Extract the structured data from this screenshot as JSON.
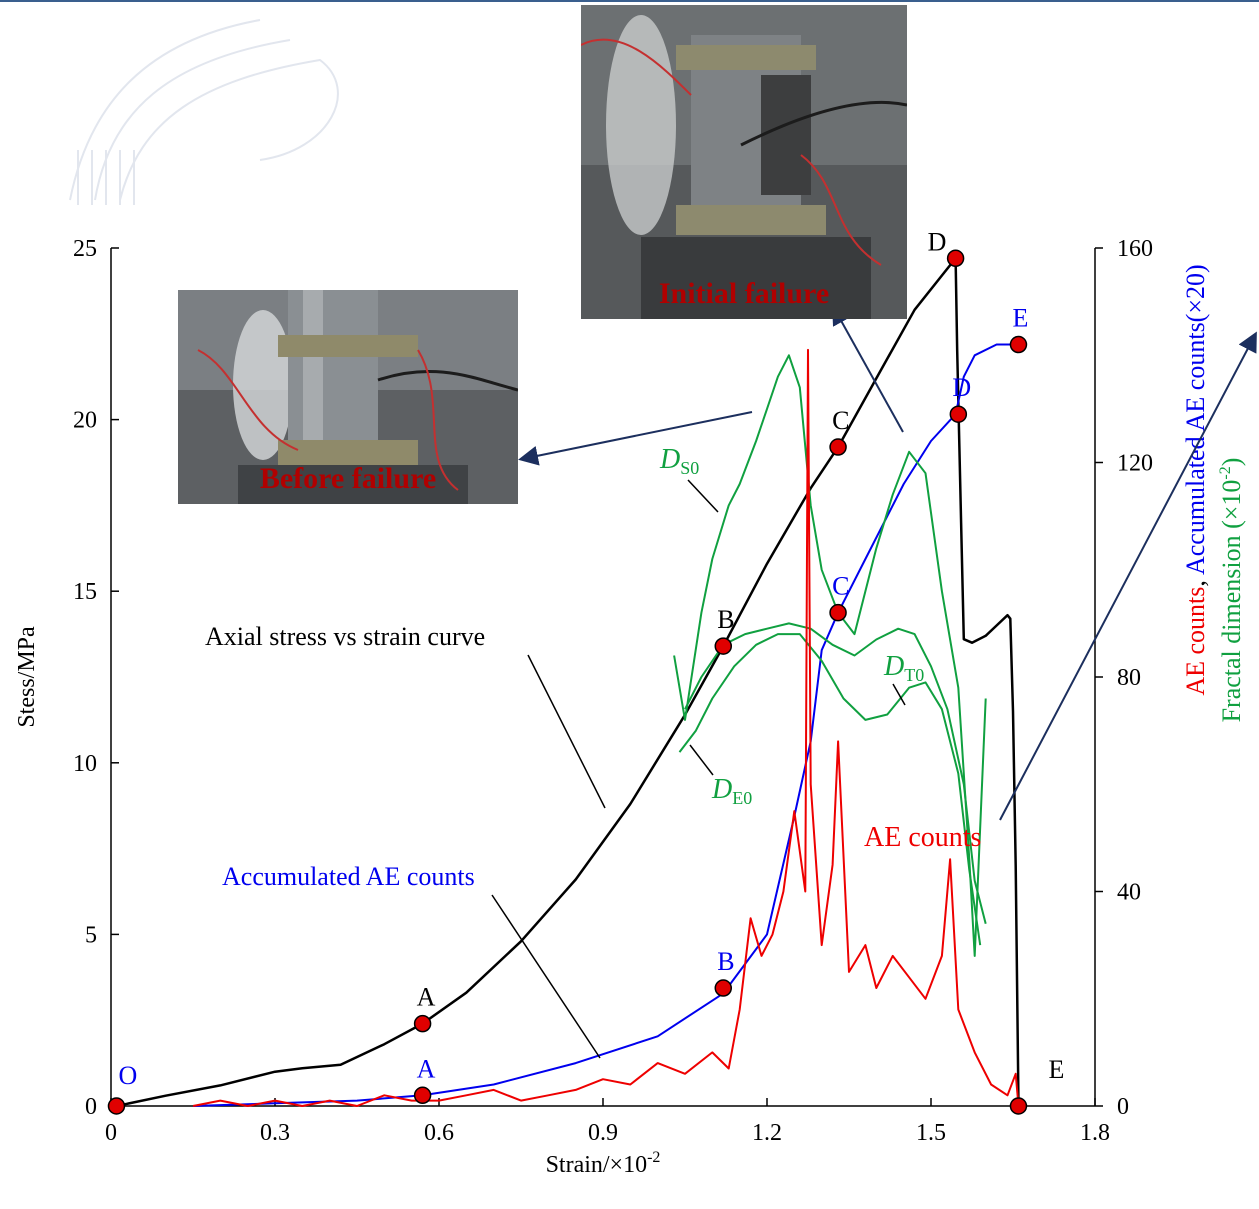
{
  "chart_data": {
    "type": "line",
    "xlabel": "Strain/×10",
    "xlabel_sup": "-2",
    "ylabel": "Stess/MPa",
    "ylabel_right_parts": [
      "AE counts",
      ", ",
      "Accumulated AE counts",
      "(×20)"
    ],
    "ylabel_right2_main": "Fractal dimension (×10",
    "ylabel_right2_sup": "-2",
    "ylabel_right2_close": ")",
    "xlim": [
      0,
      1.8
    ],
    "ylim": [
      0,
      25
    ],
    "y2lim": [
      0,
      160
    ],
    "x_ticks": [
      "0",
      "0.3",
      "0.6",
      "0.9",
      "1.2",
      "1.5",
      "1.8"
    ],
    "y_ticks": [
      "0",
      "5",
      "10",
      "15",
      "20",
      "25"
    ],
    "y2_ticks": [
      "0",
      "40",
      "80",
      "120",
      "160"
    ],
    "colors": {
      "stress": "#000000",
      "accumulated": "#0000ee",
      "ae": "#ee0000",
      "fractal": "#10a040",
      "marker": "#e00000",
      "arrow": "#1c2f5e"
    },
    "series": [
      {
        "name": "Axial  stress vs strain curve",
        "axis": "left",
        "x": [
          0.01,
          0.1,
          0.2,
          0.3,
          0.35,
          0.42,
          0.5,
          0.57,
          0.65,
          0.75,
          0.85,
          0.95,
          1.05,
          1.12,
          1.2,
          1.28,
          1.33,
          1.4,
          1.47,
          1.52,
          1.545,
          1.548,
          1.555,
          1.56,
          1.575,
          1.6,
          1.62,
          1.64,
          1.645,
          1.65,
          1.655,
          1.66
        ],
        "y": [
          0.0,
          0.3,
          0.6,
          1.0,
          1.1,
          1.2,
          1.8,
          2.4,
          3.3,
          4.8,
          6.6,
          8.8,
          11.4,
          13.4,
          15.8,
          18.0,
          19.2,
          21.2,
          23.2,
          24.2,
          24.7,
          22.0,
          17.0,
          13.6,
          13.5,
          13.7,
          14.0,
          14.3,
          14.2,
          11.5,
          7.0,
          0.0
        ]
      },
      {
        "name": "Accumulated AE counts",
        "axis": "right",
        "x": [
          0.15,
          0.3,
          0.45,
          0.57,
          0.7,
          0.85,
          1.0,
          1.12,
          1.2,
          1.25,
          1.28,
          1.3,
          1.33,
          1.38,
          1.45,
          1.5,
          1.545,
          1.56,
          1.58,
          1.62,
          1.66
        ],
        "y": [
          0,
          0.5,
          1,
          2,
          4,
          8,
          13,
          21,
          32,
          54,
          68,
          85,
          92,
          102,
          116,
          124,
          129,
          136,
          140,
          142,
          142
        ]
      },
      {
        "name": "D_S0",
        "axis": "right",
        "x": [
          1.03,
          1.05,
          1.08,
          1.1,
          1.13,
          1.15,
          1.18,
          1.2,
          1.22,
          1.24,
          1.26,
          1.28,
          1.3,
          1.33,
          1.36,
          1.4,
          1.43,
          1.46,
          1.49,
          1.52,
          1.55,
          1.57,
          1.58,
          1.6
        ],
        "y": [
          84,
          72,
          92,
          102,
          112,
          116,
          124,
          130,
          136,
          140,
          134,
          112,
          100,
          92,
          88,
          104,
          114,
          122,
          118,
          96,
          78,
          46,
          28,
          76
        ]
      },
      {
        "name": "D_T0",
        "axis": "right",
        "x": [
          1.05,
          1.08,
          1.12,
          1.16,
          1.2,
          1.24,
          1.28,
          1.32,
          1.36,
          1.4,
          1.44,
          1.47,
          1.5,
          1.53,
          1.56,
          1.58,
          1.6
        ],
        "y": [
          74,
          80,
          86,
          88,
          89,
          90,
          89,
          86,
          84,
          87,
          89,
          88,
          82,
          74,
          60,
          42,
          34
        ]
      },
      {
        "name": "D_E0",
        "axis": "right",
        "x": [
          1.04,
          1.07,
          1.1,
          1.14,
          1.18,
          1.22,
          1.26,
          1.3,
          1.34,
          1.38,
          1.42,
          1.46,
          1.49,
          1.52,
          1.55,
          1.57,
          1.59
        ],
        "y": [
          66,
          70,
          76,
          82,
          86,
          88,
          88,
          83,
          76,
          72,
          73,
          78,
          79,
          74,
          62,
          44,
          30
        ]
      },
      {
        "name": "AE counts",
        "axis": "right",
        "x": [
          0.15,
          0.2,
          0.25,
          0.3,
          0.35,
          0.4,
          0.45,
          0.5,
          0.55,
          0.6,
          0.65,
          0.7,
          0.75,
          0.8,
          0.85,
          0.9,
          0.95,
          1.0,
          1.05,
          1.1,
          1.13,
          1.15,
          1.17,
          1.19,
          1.21,
          1.23,
          1.25,
          1.27,
          1.275,
          1.28,
          1.3,
          1.32,
          1.33,
          1.35,
          1.38,
          1.4,
          1.43,
          1.46,
          1.49,
          1.52,
          1.535,
          1.55,
          1.58,
          1.61,
          1.64,
          1.655,
          1.66
        ],
        "y": [
          0,
          1,
          0,
          1,
          0,
          1,
          0,
          2,
          1,
          1,
          2,
          3,
          1,
          2,
          3,
          5,
          4,
          8,
          6,
          10,
          7,
          18,
          35,
          28,
          32,
          40,
          55,
          40,
          141,
          60,
          30,
          45,
          68,
          25,
          30,
          22,
          28,
          24,
          20,
          28,
          46,
          18,
          10,
          4,
          2,
          6,
          0
        ]
      }
    ],
    "points": [
      {
        "label": "O",
        "x": 0.01,
        "y": 0.0,
        "axis": "left",
        "label_color": "#0000ee"
      },
      {
        "label": "A",
        "x": 0.57,
        "y": 2.4,
        "axis": "left",
        "label_color": "#000000"
      },
      {
        "label": "B",
        "x": 1.12,
        "y": 13.4,
        "axis": "left",
        "label_color": "#000000"
      },
      {
        "label": "C",
        "x": 1.33,
        "y": 19.2,
        "axis": "left",
        "label_color": "#000000"
      },
      {
        "label": "D",
        "x": 1.545,
        "y": 24.7,
        "axis": "left",
        "label_color": "#000000"
      },
      {
        "label": "E",
        "x": 1.66,
        "y": 0.0,
        "axis": "left",
        "label_color": "#000000"
      },
      {
        "label": "A",
        "x": 0.57,
        "y": 2,
        "axis": "right",
        "label_color": "#0000ee"
      },
      {
        "label": "B",
        "x": 1.12,
        "y": 22,
        "axis": "right",
        "label_color": "#0000ee"
      },
      {
        "label": "C",
        "x": 1.33,
        "y": 92,
        "axis": "right",
        "label_color": "#0000ee"
      },
      {
        "label": "D",
        "x": 1.55,
        "y": 129,
        "axis": "right",
        "label_color": "#0000ee"
      },
      {
        "label": "E",
        "x": 1.66,
        "y": 142,
        "axis": "right",
        "label_color": "#0000ee"
      }
    ],
    "annotations": {
      "stress_curve": "Axial  stress vs strain curve",
      "accumulated": "Accumulated AE counts",
      "ae_counts": "AE counts",
      "ds0_main": "D",
      "ds0_sub": "S0",
      "dt0_main": "D",
      "dt0_sub": "T0",
      "de0_main": "D",
      "de0_sub": "E0"
    },
    "photos": {
      "before": "Before failure",
      "initial": "Initial failure"
    }
  }
}
